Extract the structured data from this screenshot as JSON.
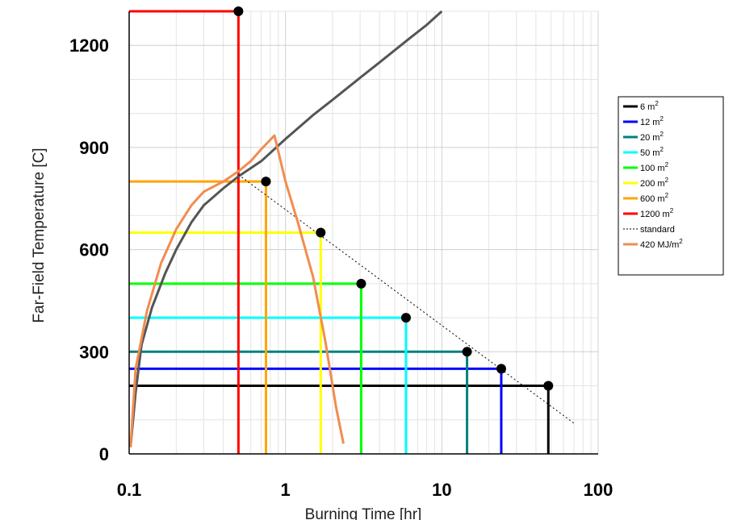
{
  "chart_data": {
    "type": "line",
    "xlabel": "Burning Time [hr]",
    "ylabel": "Far-Field Temperature [C]",
    "x_scale": "log",
    "xlim": [
      0.1,
      100
    ],
    "ylim": [
      0,
      1300
    ],
    "x_ticks": [
      0.1,
      1,
      10,
      100
    ],
    "x_tick_labels": [
      "0.1",
      "1",
      "10",
      "100"
    ],
    "y_ticks": [
      0,
      300,
      600,
      900,
      1200
    ],
    "y_tick_labels": [
      "0",
      "300",
      "600",
      "900",
      "1200"
    ],
    "grid": true,
    "legend_position": "right",
    "series": [
      {
        "name": "6 m",
        "superscript": "2",
        "color": "#000000",
        "temperature": 200,
        "duration": 48
      },
      {
        "name": "12 m",
        "superscript": "2",
        "color": "#0000ff",
        "temperature": 250,
        "duration": 24
      },
      {
        "name": "20 m",
        "superscript": "2",
        "color": "#008080",
        "temperature": 300,
        "duration": 14.5
      },
      {
        "name": "50 m",
        "superscript": "2",
        "color": "#00ffff",
        "temperature": 400,
        "duration": 5.9
      },
      {
        "name": "100 m",
        "superscript": "2",
        "color": "#00ff00",
        "temperature": 500,
        "duration": 3.05
      },
      {
        "name": "200 m",
        "superscript": "2",
        "color": "#ffff00",
        "temperature": 650,
        "duration": 1.68
      },
      {
        "name": "600 m",
        "superscript": "2",
        "color": "#ffa500",
        "temperature": 800,
        "duration": 0.75
      },
      {
        "name": "1200 m",
        "superscript": "2",
        "color": "#ff0000",
        "temperature": 1300,
        "duration": 0.5
      }
    ],
    "standard_curve": {
      "name": "standard",
      "color": "#555555",
      "x": [
        0.102,
        0.11,
        0.12,
        0.14,
        0.17,
        0.2,
        0.25,
        0.3,
        0.4,
        0.5,
        0.7,
        1,
        1.5,
        2,
        3,
        4,
        6,
        8,
        10
      ],
      "y": [
        20,
        180,
        320,
        430,
        530,
        600,
        680,
        730,
        780,
        815,
        860,
        925,
        995,
        1040,
        1105,
        1150,
        1215,
        1260,
        1300
      ]
    },
    "dotted_line": {
      "color": "#000000",
      "x": [
        0.5,
        70
      ],
      "y": [
        820,
        90
      ]
    },
    "fire_curve": {
      "name": "420 MJ/m",
      "superscript": "2",
      "color": "#f28c4f",
      "x": [
        0.102,
        0.11,
        0.13,
        0.16,
        0.2,
        0.25,
        0.3,
        0.4,
        0.5,
        0.6,
        0.7,
        0.85,
        1,
        1.2,
        1.5,
        1.8,
        2.1,
        2.35
      ],
      "y": [
        20,
        250,
        420,
        560,
        660,
        730,
        770,
        800,
        830,
        860,
        895,
        935,
        800,
        680,
        520,
        330,
        140,
        30
      ]
    }
  }
}
